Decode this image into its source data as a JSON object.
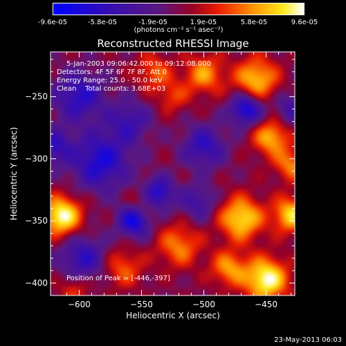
{
  "colorbar": {
    "tick_labels": [
      "-9.6e-05",
      "-5.8e-05",
      "-1.9e-05",
      "1.9e-05",
      "5.8e-05",
      "9.6e-05"
    ],
    "units_text": "(photons cm⁻² s⁻¹ asec⁻²)",
    "min": -9.6e-05,
    "max": 9.6e-05
  },
  "chart_data": {
    "type": "heatmap",
    "title": "Reconstructed RHESSI Image",
    "xlabel": "Heliocentric X (arcsec)",
    "ylabel": "Heliocentric Y (arcsec)",
    "xlim": [
      -623,
      -427
    ],
    "ylim": [
      -410,
      -214
    ],
    "x_ticks": [
      -600,
      -550,
      -500,
      -450
    ],
    "y_ticks": [
      -400,
      -350,
      -300,
      -250
    ],
    "x_tick_labels": [
      "−600",
      "−550",
      "−500",
      "−450"
    ],
    "y_tick_labels": [
      "−400",
      "−350",
      "−300",
      "−250"
    ],
    "colormap": "blue-purple-red-yellow-white",
    "peak": [
      -446,
      -397
    ],
    "sources": [
      {
        "x": -614,
        "y": -346,
        "amp": 1.0,
        "sigma": 11
      },
      {
        "x": -450,
        "y": -397,
        "amp": 1.0,
        "sigma": 12
      },
      {
        "x": -470,
        "y": -348,
        "amp": 0.85,
        "sigma": 12
      },
      {
        "x": -430,
        "y": -345,
        "amp": 0.8,
        "sigma": 10
      },
      {
        "x": -458,
        "y": -236,
        "amp": 0.75,
        "sigma": 12
      },
      {
        "x": -500,
        "y": -232,
        "amp": 0.6,
        "sigma": 11
      },
      {
        "x": -540,
        "y": -230,
        "amp": 0.45,
        "sigma": 10
      },
      {
        "x": -446,
        "y": -283,
        "amp": 0.7,
        "sigma": 10
      },
      {
        "x": -430,
        "y": -305,
        "amp": 0.55,
        "sigma": 9
      },
      {
        "x": -520,
        "y": -370,
        "amp": 0.55,
        "sigma": 12
      },
      {
        "x": -565,
        "y": -388,
        "amp": 0.45,
        "sigma": 11
      },
      {
        "x": -480,
        "y": -388,
        "amp": 0.6,
        "sigma": 10
      },
      {
        "x": -548,
        "y": -335,
        "amp": 0.35,
        "sigma": 9
      },
      {
        "x": -525,
        "y": -250,
        "amp": 0.35,
        "sigma": 9
      },
      {
        "x": -604,
        "y": -405,
        "amp": 0.35,
        "sigma": 9
      },
      {
        "x": -597,
        "y": -380,
        "amp": -0.6,
        "sigma": 13
      },
      {
        "x": -583,
        "y": -302,
        "amp": -0.75,
        "sigma": 16
      },
      {
        "x": -556,
        "y": -350,
        "amp": -0.85,
        "sigma": 9
      },
      {
        "x": -537,
        "y": -328,
        "amp": -0.8,
        "sigma": 9
      },
      {
        "x": -600,
        "y": -250,
        "amp": -0.65,
        "sigma": 14
      },
      {
        "x": -500,
        "y": -290,
        "amp": -0.6,
        "sigma": 12
      },
      {
        "x": -466,
        "y": -260,
        "amp": -0.85,
        "sigma": 9
      },
      {
        "x": -560,
        "y": -270,
        "amp": -0.5,
        "sigma": 12
      },
      {
        "x": -620,
        "y": -290,
        "amp": -0.55,
        "sigma": 10
      },
      {
        "x": -505,
        "y": -335,
        "amp": -0.45,
        "sigma": 10
      },
      {
        "x": -430,
        "y": -260,
        "amp": -0.45,
        "sigma": 9
      }
    ]
  },
  "info": {
    "line1": "5-Jan-2003 09:06:42.000 to 09:12:08.000",
    "line2": "Detectors: 4F 5F 6F 7F 8F, Att 0",
    "line3": "Energy Range: 25.0 - 50.0 keV",
    "line4": "Clean    Total counts: 3.68E+03",
    "peak_text": "Position of Peak = [-446,-397]"
  },
  "timestamp": "23-May-2013 06:03"
}
